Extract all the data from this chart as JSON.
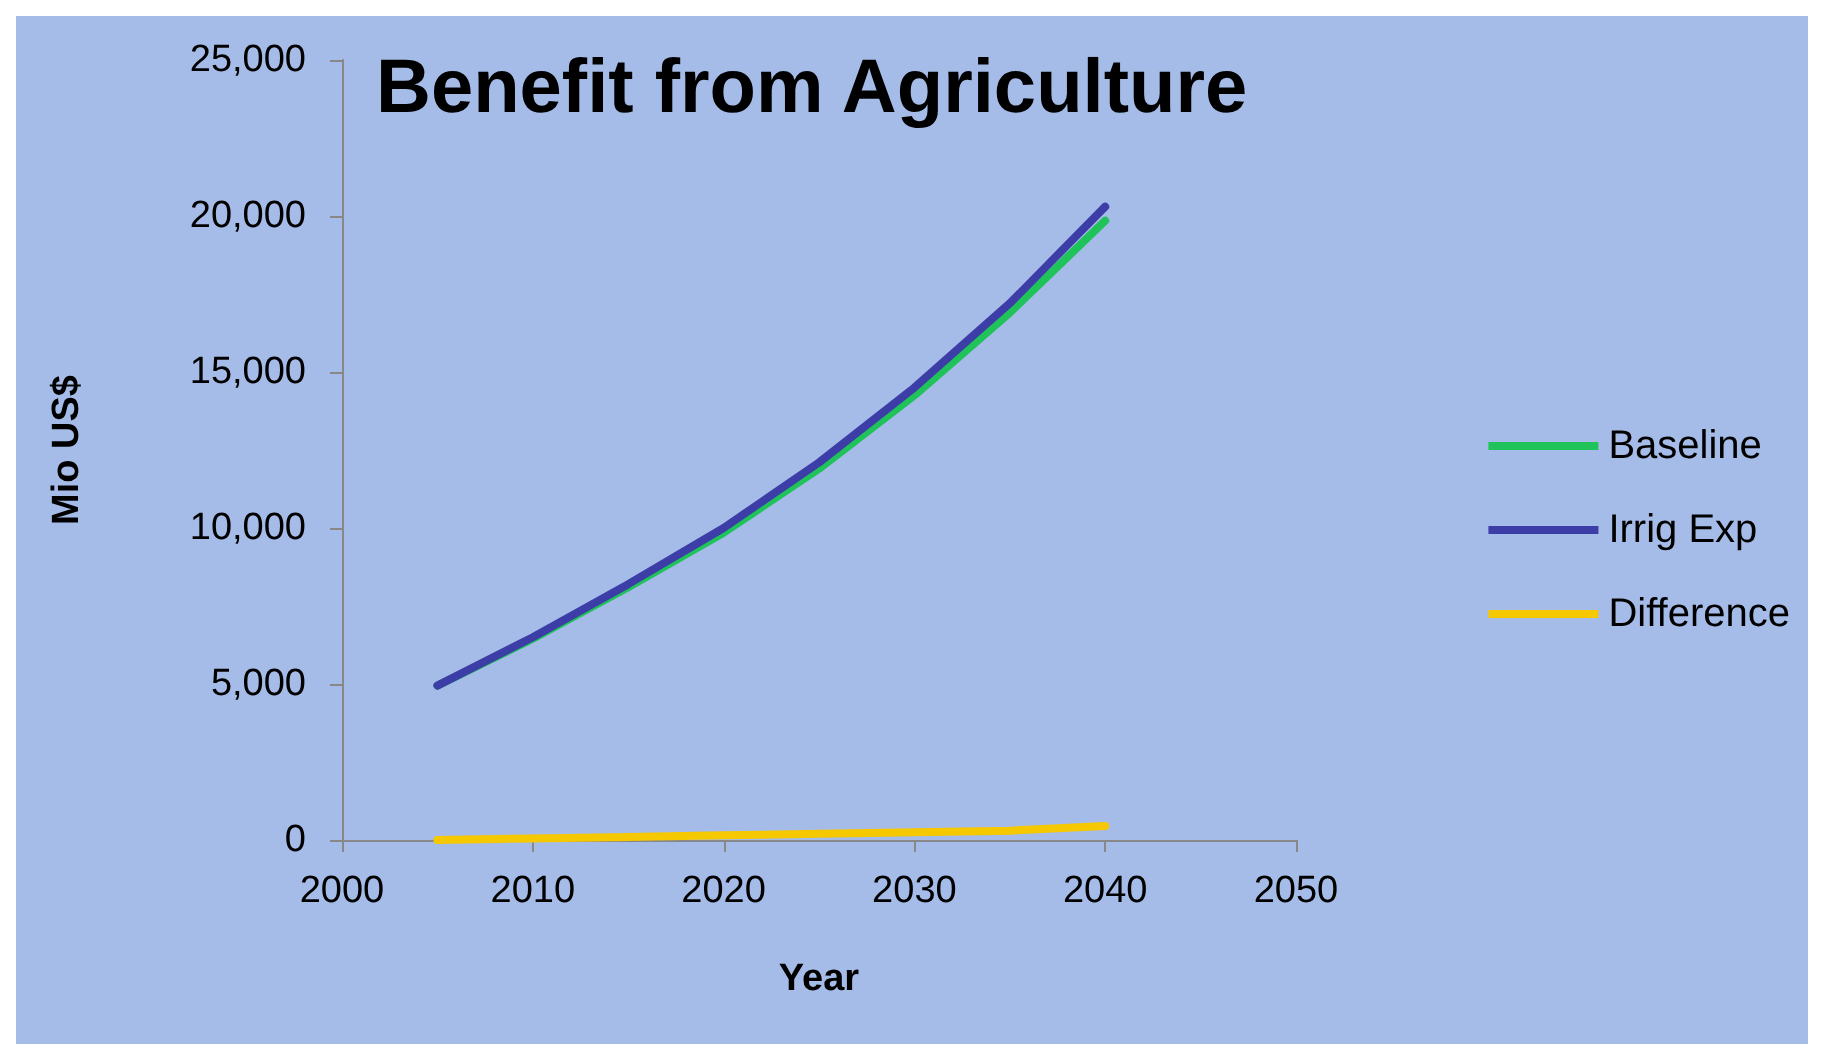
{
  "chart_data": {
    "type": "line",
    "title": "Benefit from Agriculture",
    "xlabel": "Year",
    "ylabel": "Mio US$",
    "x": [
      2005,
      2010,
      2015,
      2020,
      2025,
      2030,
      2035,
      2040
    ],
    "series": [
      {
        "name": "Baseline",
        "color": "#1fc35a",
        "values": [
          4950,
          6450,
          8100,
          9850,
          11900,
          14250,
          16900,
          19850
        ]
      },
      {
        "name": "Irrig Exp",
        "color": "#3d3da8",
        "values": [
          4950,
          6500,
          8200,
          10000,
          12100,
          14500,
          17200,
          20300
        ]
      },
      {
        "name": "Difference",
        "color": "#f5c800",
        "values": [
          0,
          50,
          100,
          150,
          200,
          250,
          300,
          450
        ]
      }
    ],
    "xlim": [
      2000,
      2050
    ],
    "xticks": [
      2000,
      2010,
      2020,
      2030,
      2040,
      2050
    ],
    "ylim": [
      0,
      25000
    ],
    "yticks": [
      0,
      {
        "value": 5000,
        "label": "5,000"
      },
      {
        "value": 10000,
        "label": "10,000"
      },
      {
        "value": 15000,
        "label": "15,000"
      },
      {
        "value": 20000,
        "label": "20,000"
      },
      {
        "value": 25000,
        "label": "25,000"
      }
    ],
    "grid": false,
    "legend": "right",
    "marker": "none",
    "line_style": "solid"
  }
}
